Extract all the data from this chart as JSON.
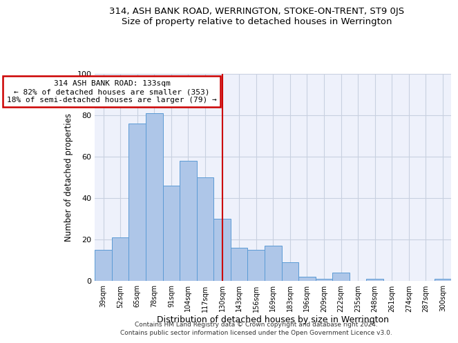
{
  "title": "314, ASH BANK ROAD, WERRINGTON, STOKE-ON-TRENT, ST9 0JS",
  "subtitle": "Size of property relative to detached houses in Werrington",
  "xlabel": "Distribution of detached houses by size in Werrington",
  "ylabel": "Number of detached properties",
  "categories": [
    "39sqm",
    "52sqm",
    "65sqm",
    "78sqm",
    "91sqm",
    "104sqm",
    "117sqm",
    "130sqm",
    "143sqm",
    "156sqm",
    "169sqm",
    "183sqm",
    "196sqm",
    "209sqm",
    "222sqm",
    "235sqm",
    "248sqm",
    "261sqm",
    "274sqm",
    "287sqm",
    "300sqm"
  ],
  "values": [
    15,
    21,
    76,
    81,
    46,
    58,
    50,
    30,
    16,
    15,
    17,
    9,
    2,
    1,
    4,
    0,
    1,
    0,
    0,
    0,
    1
  ],
  "bar_color": "#aec6e8",
  "bar_edge_color": "#5b9bd5",
  "property_bin_index": 7,
  "vline_color": "#cc0000",
  "annotation_line1": "314 ASH BANK ROAD: 133sqm",
  "annotation_line2": "← 82% of detached houses are smaller (353)",
  "annotation_line3": "18% of semi-detached houses are larger (79) →",
  "annotation_box_color": "#ffffff",
  "annotation_box_edge_color": "#cc0000",
  "ylim": [
    0,
    100
  ],
  "background_color": "#eef1fb",
  "footer_line1": "Contains HM Land Registry data © Crown copyright and database right 2024.",
  "footer_line2": "Contains public sector information licensed under the Open Government Licence v3.0.",
  "title_fontsize": 9.5,
  "subtitle_fontsize": 9.5,
  "ylabel_fontsize": 8.5,
  "xlabel_fontsize": 9
}
